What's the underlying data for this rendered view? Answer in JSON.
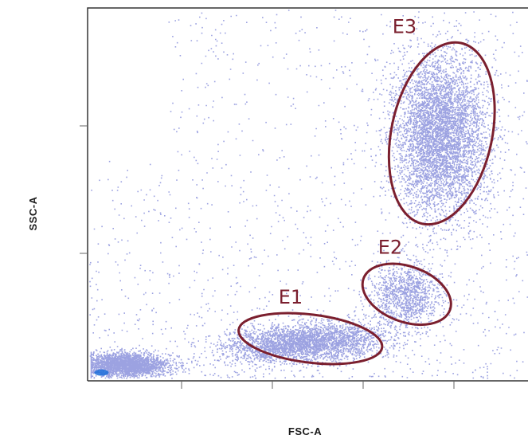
{
  "chart_data": {
    "type": "scatter",
    "title": "",
    "xlabel": "FSC-A",
    "ylabel": "SSC-A",
    "xlim": [
      0,
      100
    ],
    "ylim": [
      0,
      100
    ],
    "grid": false,
    "colors": {
      "points": "#4a55c8",
      "dense": "#1e6fd9",
      "gate": "#7b1f2e",
      "axis": "#333333"
    },
    "populations": [
      {
        "name": "debris",
        "cx": 8,
        "cy": 4,
        "sx": 5,
        "sy": 1.6,
        "n": 2600
      },
      {
        "name": "E1",
        "cx": 49,
        "cy": 10,
        "sx": 9,
        "sy": 2.5,
        "n": 3200
      },
      {
        "name": "E2",
        "cx": 72,
        "cy": 23,
        "sx": 4,
        "sy": 4,
        "n": 1100
      },
      {
        "name": "E3",
        "cx": 80,
        "cy": 66,
        "sx": 5.5,
        "sy": 11,
        "n": 5200
      },
      {
        "name": "background",
        "uniform": true,
        "n": 1400
      }
    ],
    "gates": [
      {
        "label": "E1",
        "cx": 50.5,
        "cy": 11,
        "rx": 16.5,
        "ry": 6.5,
        "rotation": 7
      },
      {
        "label": "E2",
        "cx": 72.5,
        "cy": 23,
        "rx": 10.5,
        "ry": 7.5,
        "rotation": 20
      },
      {
        "label": "E3",
        "cx": 80.5,
        "cy": 66.5,
        "rx": 11.5,
        "ry": 25,
        "rotation": 12
      }
    ]
  }
}
